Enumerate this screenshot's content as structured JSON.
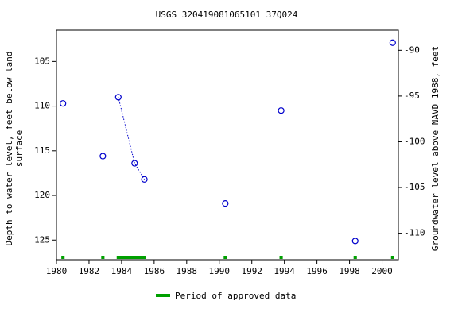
{
  "chart_data": {
    "type": "scatter",
    "title": "USGS 320419081065101 37Q024",
    "ylabel": [
      "Depth to water level, feet below land",
      "surface"
    ],
    "y2label": "Groundwater level above NAVD 1988, feet",
    "xlim": [
      1980,
      2001
    ],
    "xticks": [
      1980,
      1982,
      1984,
      1986,
      1988,
      1990,
      1992,
      1994,
      1996,
      1998,
      2000
    ],
    "ylim": [
      101.5,
      127.2
    ],
    "yticks": [
      105,
      110,
      115,
      120,
      125
    ],
    "y_inverted": true,
    "y2lim": [
      -112.9,
      -87.8
    ],
    "y2ticks": [
      -90,
      -95,
      -100,
      -105,
      -110
    ],
    "color": "#0000cc",
    "groups": [
      {
        "x": [
          1980.4
        ],
        "values": [
          109.7
        ]
      },
      {
        "x": [
          1982.85
        ],
        "values": [
          115.6
        ]
      },
      {
        "x": [
          1983.8,
          1984.8,
          1985.4
        ],
        "values": [
          109.0,
          116.4,
          118.2
        ]
      },
      {
        "x": [
          1990.37
        ],
        "values": [
          120.9
        ]
      },
      {
        "x": [
          1993.8
        ],
        "values": [
          110.5
        ]
      },
      {
        "x": [
          1998.35
        ],
        "values": [
          125.1
        ]
      },
      {
        "x": [
          2000.65
        ],
        "values": [
          102.9
        ]
      }
    ],
    "approved_periods": [
      [
        1980.3,
        1980.5
      ],
      [
        1982.75,
        1982.95
      ],
      [
        1983.7,
        1985.5
      ],
      [
        1990.27,
        1990.47
      ],
      [
        1993.7,
        1993.9
      ],
      [
        1998.25,
        1998.45
      ],
      [
        2000.55,
        2000.75
      ]
    ],
    "approved_color": "#00a000",
    "legend": "Period of approved data"
  }
}
